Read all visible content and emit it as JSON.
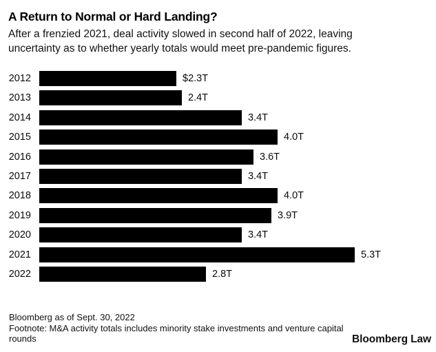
{
  "chart_data": {
    "type": "bar",
    "orientation": "horizontal",
    "title": "A Return to Normal or Hard Landing?",
    "subtitle": "After a frenzied 2021, deal activity slowed in second half of 2022, leaving uncertainty as to whether yearly totals would meet pre-pandemic figures.",
    "categories": [
      "2012",
      "2013",
      "2014",
      "2015",
      "2016",
      "2017",
      "2018",
      "2019",
      "2020",
      "2021",
      "2022"
    ],
    "values": [
      2.3,
      2.4,
      3.4,
      4.0,
      3.6,
      3.4,
      4.0,
      3.9,
      3.4,
      5.3,
      2.8
    ],
    "value_labels": [
      "$2.3T",
      "2.4T",
      "3.4T",
      "4.0T",
      "3.6T",
      "3.4T",
      "4.0T",
      "3.9T",
      "3.4T",
      "5.3T",
      "2.8T"
    ],
    "unit": "trillion USD",
    "xlim": [
      0,
      5.3
    ],
    "bar_color": "#000000",
    "background_color": "#ffffff",
    "grid": false,
    "legend": false
  },
  "footer": {
    "source": "Bloomberg as of Sept. 30, 2022",
    "footnote": "Footnote: M&A activity totals includes minority stake investments and venture capital rounds",
    "logo": "Bloomberg Law"
  }
}
